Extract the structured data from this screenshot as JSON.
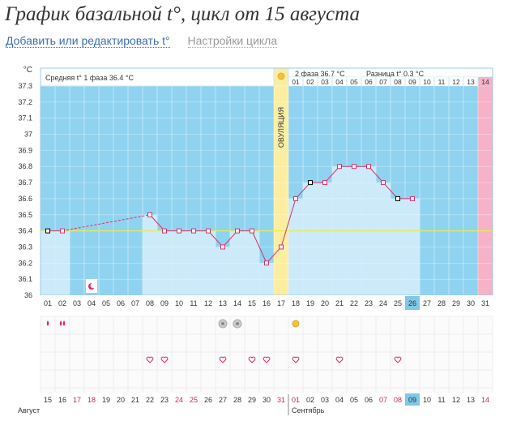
{
  "header": {
    "title": "График базальной t°, цикл от 15 августа",
    "edit_link": "Добавить или редактировать t°",
    "settings_link": "Настройки цикла"
  },
  "chart_data": {
    "type": "line",
    "yunit": "°C",
    "ylim": [
      36.0,
      37.3
    ],
    "yticks": [
      "37.3",
      "37.2",
      "37.1",
      "37",
      "36.9",
      "36.8",
      "36.7",
      "36.6",
      "36.5",
      "36.4",
      "36.3",
      "36.2",
      "36.1",
      "36"
    ],
    "phase1_label": "Средняя t° 1 фаза 36.4 °C",
    "phase2_label": "2 фаза 36.7 °C",
    "diff_label": "Разница t° 0.3 °C",
    "ovulation_label": "ОВУЛЯЦИЯ",
    "ovulation_day": 17,
    "coverline": 36.4,
    "days": [
      "01",
      "02",
      "03",
      "04",
      "05",
      "06",
      "07",
      "08",
      "09",
      "10",
      "11",
      "12",
      "13",
      "14",
      "15",
      "16",
      "17",
      "18",
      "19",
      "20",
      "21",
      "22",
      "23",
      "24",
      "25",
      "26",
      "27",
      "28",
      "29",
      "30",
      "31"
    ],
    "phase2_days": [
      "01",
      "02",
      "03",
      "04",
      "05",
      "06",
      "07",
      "08",
      "09",
      "10",
      "11",
      "12",
      "13",
      "14"
    ],
    "dates": [
      "15",
      "16",
      "17",
      "18",
      "19",
      "20",
      "21",
      "22",
      "23",
      "24",
      "25",
      "26",
      "27",
      "28",
      "29",
      "30",
      "31",
      "01",
      "02",
      "03",
      "04",
      "05",
      "06",
      "07",
      "08",
      "09",
      "10",
      "11",
      "12",
      "13",
      "14"
    ],
    "temps": [
      36.4,
      36.4,
      null,
      null,
      null,
      null,
      null,
      36.5,
      36.4,
      36.4,
      36.4,
      36.4,
      36.3,
      36.4,
      36.4,
      36.2,
      36.3,
      36.6,
      36.7,
      36.7,
      36.8,
      36.8,
      36.8,
      36.7,
      36.6,
      36.6,
      null,
      null,
      null,
      null,
      null
    ],
    "black_marker_days": [
      1,
      19,
      25
    ],
    "current_day": 26,
    "highlight_date": "09",
    "month_left": "Август",
    "month_right": "Сентябрь",
    "colors": {
      "sky": "#8fd3f0",
      "bar": "#cceaf9",
      "line": "#d0336a",
      "ovulation": "#fbeea1",
      "day14": "#f6b2c6",
      "coverline": "#e3ee4f",
      "weekend": "#d0254f"
    },
    "symbols": {
      "bleed_days": [
        1,
        2
      ],
      "moon_day": 4,
      "gray_circle_days": [
        13,
        14
      ],
      "sun_day": 18,
      "heart_days": [
        8,
        9,
        13,
        15,
        16,
        18,
        21,
        25
      ]
    }
  }
}
